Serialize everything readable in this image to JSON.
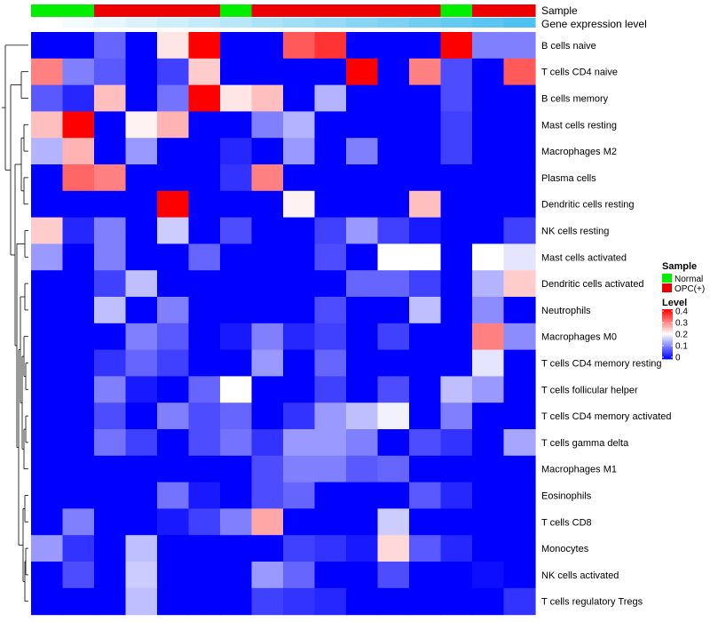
{
  "chart_data": {
    "type": "heatmap",
    "title": "",
    "annotation_tracks": [
      {
        "name": "Sample",
        "label": "Sample"
      },
      {
        "name": "Gene expression level",
        "label": "Gene expression level"
      }
    ],
    "sample_groups": [
      "Normal",
      "Normal",
      "OPC(+)",
      "OPC(+)",
      "OPC(+)",
      "OPC(+)",
      "Normal",
      "OPC(+)",
      "OPC(+)",
      "OPC(+)",
      "OPC(+)",
      "OPC(+)",
      "OPC(+)",
      "Normal",
      "OPC(+)",
      "OPC(+)"
    ],
    "gene_expression_level": [
      0.0,
      0.07,
      0.13,
      0.2,
      0.27,
      0.33,
      0.4,
      0.47,
      0.53,
      0.6,
      0.67,
      0.73,
      0.8,
      0.87,
      0.93,
      1.0
    ],
    "rows": [
      "B cells naive",
      "T cells CD4 naive",
      "B cells memory",
      "Mast cells resting",
      "Macrophages M2",
      "Plasma cells",
      "Dendritic cells resting",
      "NK cells resting",
      "Mast cells activated",
      "Dendritic cells activated",
      "Neutrophils",
      "Macrophages M0",
      "T cells CD4 memory resting",
      "T cells follicular helper",
      "T cells CD4 memory activated",
      "T cells gamma delta",
      "Macrophages M1",
      "Eosinophils",
      "T cells CD8",
      "Monocytes",
      "NK cells activated",
      "T cells regulatory  Tregs"
    ],
    "values": [
      [
        0,
        0,
        0.08,
        0,
        0.22,
        0.4,
        0,
        0,
        0.33,
        0.36,
        0,
        0,
        0,
        0.4,
        0.1,
        0.1
      ],
      [
        0.3,
        0.1,
        0.07,
        0,
        0.05,
        0.24,
        0,
        0,
        0,
        0,
        0.4,
        0,
        0.3,
        0.06,
        0,
        0.33
      ],
      [
        0.07,
        0.03,
        0.25,
        0,
        0.09,
        0.4,
        0.22,
        0.25,
        0,
        0.14,
        0,
        0,
        0,
        0.06,
        0,
        0
      ],
      [
        0.25,
        0.4,
        0,
        0.21,
        0.26,
        0,
        0,
        0.1,
        0.14,
        0,
        0,
        0,
        0,
        0.05,
        0,
        0
      ],
      [
        0.14,
        0.26,
        0,
        0.12,
        0,
        0,
        0.03,
        0,
        0.12,
        0,
        0.1,
        0,
        0,
        0.05,
        0,
        0
      ],
      [
        0,
        0.32,
        0.3,
        0,
        0,
        0,
        0.04,
        0.3,
        0,
        0,
        0,
        0,
        0,
        0,
        0,
        0
      ],
      [
        0,
        0,
        0,
        0,
        0.4,
        0,
        0,
        0,
        0.21,
        0,
        0,
        0,
        0.25,
        0,
        0,
        0
      ],
      [
        0.24,
        0.03,
        0.1,
        0,
        0.16,
        0,
        0.06,
        0,
        0,
        0.05,
        0.12,
        0.05,
        0.02,
        0,
        0,
        0.05
      ],
      [
        0.12,
        0,
        0.1,
        0,
        0,
        0.08,
        0,
        0,
        0,
        0.06,
        0,
        0.2,
        0.2,
        0,
        0.2,
        0.18
      ],
      [
        0,
        0,
        0.05,
        0.15,
        0,
        0,
        0,
        0,
        0,
        0,
        0.08,
        0.08,
        0.05,
        0,
        0.14,
        0.24
      ],
      [
        0,
        0,
        0.15,
        0,
        0.1,
        0,
        0,
        0,
        0,
        0.06,
        0,
        0,
        0.15,
        0,
        0.11,
        0
      ],
      [
        0,
        0,
        0,
        0.1,
        0.07,
        0,
        0.02,
        0.1,
        0.03,
        0.05,
        0,
        0.05,
        0,
        0,
        0.3,
        0.11
      ],
      [
        0,
        0,
        0.04,
        0.08,
        0.05,
        0,
        0,
        0.12,
        0,
        0.08,
        0,
        0,
        0,
        0,
        0.18,
        0
      ],
      [
        0,
        0,
        0.1,
        0.02,
        0,
        0.08,
        0.2,
        0,
        0,
        0.05,
        0,
        0.06,
        0,
        0.15,
        0.12,
        0
      ],
      [
        0,
        0,
        0.06,
        0,
        0.1,
        0.06,
        0.08,
        0,
        0.04,
        0.12,
        0.15,
        0.19,
        0,
        0.1,
        0,
        0
      ],
      [
        0,
        0,
        0.09,
        0.05,
        0,
        0.06,
        0.09,
        0.04,
        0.12,
        0.12,
        0.1,
        0,
        0.06,
        0.04,
        0,
        0.13
      ],
      [
        0,
        0,
        0,
        0,
        0,
        0,
        0,
        0.06,
        0.1,
        0.1,
        0.07,
        0.08,
        0,
        0,
        0,
        0
      ],
      [
        0,
        0,
        0,
        0,
        0.09,
        0.02,
        0,
        0.06,
        0.08,
        0,
        0,
        0,
        0.07,
        0.03,
        0,
        0
      ],
      [
        0,
        0.1,
        0,
        0,
        0.02,
        0.05,
        0.1,
        0.27,
        0,
        0,
        0,
        0.16,
        0,
        0,
        0,
        0
      ],
      [
        0.12,
        0.04,
        0,
        0.15,
        0,
        0,
        0,
        0,
        0.05,
        0.04,
        0.02,
        0.23,
        0.07,
        0.03,
        0,
        0
      ],
      [
        0,
        0.06,
        0,
        0.16,
        0,
        0,
        0,
        0.12,
        0.08,
        0,
        0,
        0.06,
        0,
        0,
        0.01,
        0
      ],
      [
        0,
        0,
        0,
        0.15,
        0,
        0,
        0,
        0.05,
        0.04,
        0.03,
        0,
        0,
        0,
        0,
        0,
        0.04
      ]
    ],
    "legend": [
      {
        "title": "Sample",
        "entries": [
          {
            "label": "Normal",
            "color": "#00ee00"
          },
          {
            "label": "OPC(+)",
            "color": "#ee0000"
          }
        ]
      },
      {
        "title": "Level",
        "ticks": [
          0.4,
          0.3,
          0.2,
          0.1,
          0
        ],
        "tick_labels": [
          "0.4",
          "0.3",
          "0.2",
          "0.1",
          "0"
        ],
        "range": [
          0,
          0.4
        ]
      }
    ],
    "colors": {
      "low": "#0000ff",
      "mid": "#ffffff",
      "high": "#ff0000",
      "track_low": "#ffffff",
      "track_high": "#4ec2f0",
      "dendrogram": "#000000"
    },
    "legend_placement": "right"
  }
}
